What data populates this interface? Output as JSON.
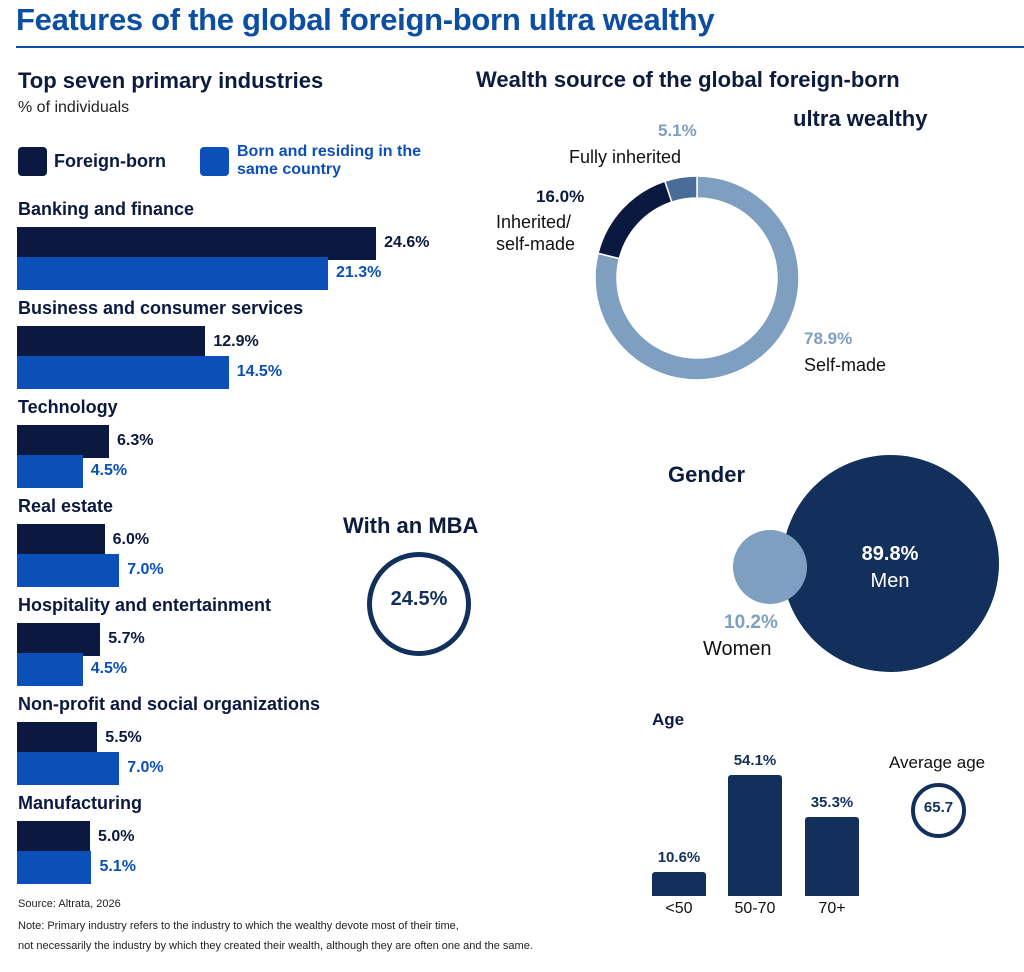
{
  "title": "Features of the global foreign-born ultra wealthy",
  "industries": {
    "title": "Top seven primary industries",
    "subtitle": "% of individuals",
    "legend": {
      "foreign_born": "Foreign-born",
      "born_residing": "Born and residing in the same country"
    }
  },
  "wealth_source": {
    "title_line1": "Wealth source of the global foreign-born",
    "title_line2": "ultra wealthy"
  },
  "mba": {
    "title": "With an MBA",
    "value": "24.5%"
  },
  "gender": {
    "title": "Gender",
    "men_pct": "89.8%",
    "men_label": "Men",
    "women_pct": "10.2%",
    "women_label": "Women"
  },
  "age": {
    "title": "Age",
    "average_title": "Average age",
    "average_value": "65.7"
  },
  "source": "Source: Altrata, 2026",
  "note_line1": "Note: Primary industry refers to the industry to which the wealthy devote most of their time,",
  "note_line2": "not necessarily the industry by which they created their wealth, although they are often one and the same.",
  "colors": {
    "foreign_born": "#0b1940",
    "born_residing": "#0b4fb8",
    "donut_selfmade": "#7e9fbf",
    "donut_inherited": "#0b1940",
    "donut_fully": "#4a6c99",
    "navy": "#13305c"
  },
  "chart_data": [
    {
      "type": "bar",
      "title": "Top seven primary industries",
      "subtitle": "% of individuals",
      "categories": [
        "Banking and finance",
        "Business and consumer services",
        "Technology",
        "Real estate",
        "Hospitality and entertainment",
        "Non-profit and social organizations",
        "Manufacturing"
      ],
      "series": [
        {
          "name": "Foreign-born",
          "values": [
            24.6,
            12.9,
            6.3,
            6.0,
            5.7,
            5.5,
            5.0
          ],
          "labels": [
            "24.6%",
            "12.9%",
            "6.3%",
            "6.0%",
            "5.7%",
            "5.5%",
            "5.0%"
          ]
        },
        {
          "name": "Born and residing in the same country",
          "values": [
            21.3,
            14.5,
            4.5,
            7.0,
            4.5,
            7.0,
            5.1
          ],
          "labels": [
            "21.3%",
            "14.5%",
            "4.5%",
            "7.0%",
            "4.5%",
            "7.0%",
            "5.1%"
          ]
        }
      ],
      "orientation": "horizontal"
    },
    {
      "type": "pie",
      "title": "Wealth source of the global foreign-born ultra wealthy",
      "donut": true,
      "slices": [
        {
          "label": "Self-made",
          "value": 78.9,
          "pct_label": "78.9%"
        },
        {
          "label": "Inherited/ self-made",
          "value": 16.0,
          "pct_label": "16.0%"
        },
        {
          "label": "Fully inherited",
          "value": 5.1,
          "pct_label": "5.1%"
        }
      ]
    },
    {
      "type": "bar",
      "title": "Age",
      "categories": [
        "<50",
        "50-70",
        "70+"
      ],
      "values": [
        10.6,
        54.1,
        35.3
      ],
      "labels": [
        "10.6%",
        "54.1%",
        "35.3%"
      ]
    }
  ]
}
